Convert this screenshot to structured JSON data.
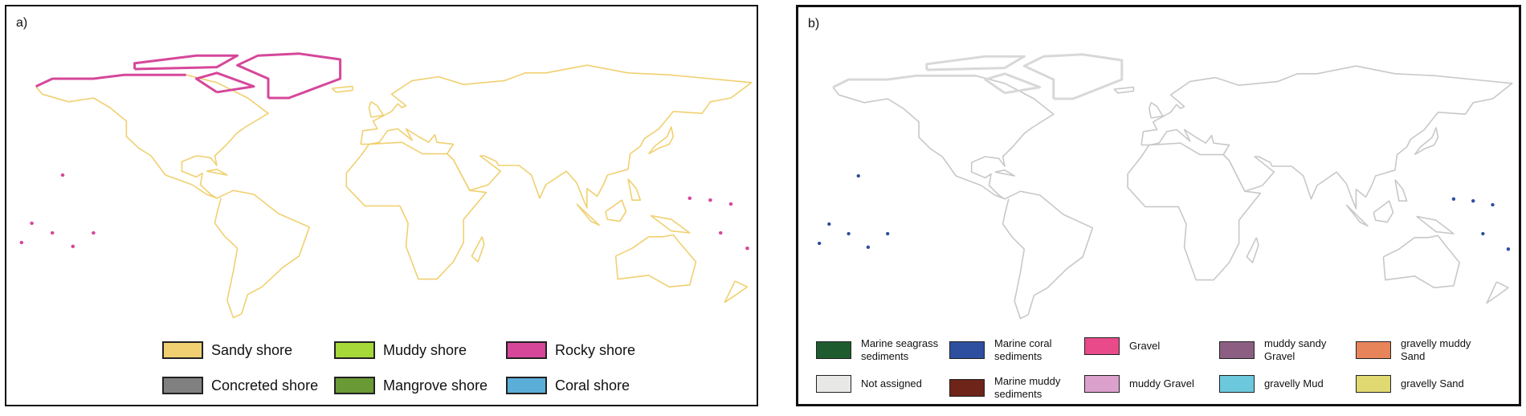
{
  "panels": [
    {
      "label": "a)",
      "legend": [
        {
          "name": "Sandy shore",
          "color": "#f0d070"
        },
        {
          "name": "Muddy shore",
          "color": "#a6d83a"
        },
        {
          "name": "Rocky shore",
          "color": "#d6479a"
        },
        {
          "name": "Concreted shore",
          "color": "#808080"
        },
        {
          "name": "Mangrove shore",
          "color": "#6a9a35"
        },
        {
          "name": "Coral shore",
          "color": "#5aaed8"
        }
      ]
    },
    {
      "label": "b)",
      "legend": [
        {
          "name": "Marine seagrass sediments",
          "color": "#1e5c30"
        },
        {
          "name": "Marine coral sediments",
          "color": "#2e4f9f"
        },
        {
          "name": "Gravel",
          "color": "#e84a8a"
        },
        {
          "name": "muddy sandy Gravel",
          "color": "#8c5f82"
        },
        {
          "name": "gravelly muddy Sand",
          "color": "#e8845a"
        },
        {
          "name": "Not assigned",
          "color": "#e8e8e6"
        },
        {
          "name": "Marine muddy sediments",
          "color": "#6e2418"
        },
        {
          "name": "muddy Gravel",
          "color": "#dca0cc"
        },
        {
          "name": "gravelly Mud",
          "color": "#6cc8dc"
        },
        {
          "name": "gravelly Sand",
          "color": "#e0d870"
        }
      ]
    }
  ]
}
